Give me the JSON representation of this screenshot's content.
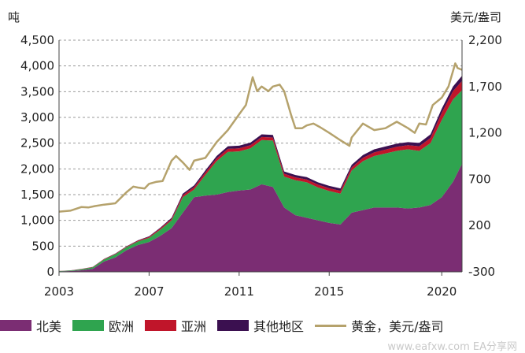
{
  "chart_data": {
    "type": "area",
    "left_axis_unit": "吨",
    "right_axis_unit": "美元/盎司",
    "left_ylim": [
      0,
      4500
    ],
    "left_ticks": [
      "0",
      "500",
      "1,000",
      "1,500",
      "2,000",
      "2,500",
      "3,000",
      "3,500",
      "4,000",
      "4,500"
    ],
    "right_ylim": [
      -300,
      2200
    ],
    "right_ticks": [
      "-300",
      "200",
      "700",
      "1,200",
      "1,700",
      "2,200"
    ],
    "x_range": [
      2003,
      2020.9
    ],
    "x_ticks": [
      "2003",
      "2007",
      "2011",
      "2015",
      "2020"
    ],
    "stack_order": [
      "北美",
      "欧洲",
      "亚洲",
      "其他地区"
    ],
    "x": [
      2003,
      2003.5,
      2004,
      2004.5,
      2005,
      2005.5,
      2006,
      2006.5,
      2007,
      2007.5,
      2008,
      2008.5,
      2009,
      2009.5,
      2010,
      2010.5,
      2011,
      2011.5,
      2012,
      2012.5,
      2013,
      2013.5,
      2014,
      2014.5,
      2015,
      2015.5,
      2016,
      2016.5,
      2017,
      2017.5,
      2018,
      2018.5,
      2019,
      2019.5,
      2020,
      2020.5,
      2020.9
    ],
    "series": [
      {
        "name": "北美",
        "color": "#7b2d73",
        "values": [
          10,
          15,
          30,
          60,
          200,
          280,
          420,
          520,
          580,
          700,
          850,
          1150,
          1450,
          1480,
          1500,
          1550,
          1580,
          1600,
          1700,
          1650,
          1250,
          1100,
          1050,
          1000,
          950,
          920,
          1150,
          1200,
          1250,
          1250,
          1250,
          1230,
          1250,
          1300,
          1450,
          1750,
          2100
        ]
      },
      {
        "name": "欧洲",
        "color": "#2fa44f",
        "values": [
          5,
          10,
          20,
          30,
          40,
          60,
          60,
          70,
          80,
          120,
          150,
          300,
          150,
          400,
          650,
          780,
          760,
          800,
          860,
          900,
          600,
          680,
          690,
          640,
          620,
          600,
          820,
          950,
          1000,
          1050,
          1100,
          1150,
          1100,
          1200,
          1500,
          1600,
          1430
        ]
      },
      {
        "name": "亚洲",
        "color": "#c0152a",
        "values": [
          2,
          2,
          5,
          5,
          8,
          10,
          12,
          15,
          20,
          25,
          30,
          40,
          45,
          50,
          55,
          60,
          60,
          60,
          60,
          60,
          55,
          55,
          55,
          55,
          55,
          55,
          60,
          65,
          70,
          75,
          80,
          80,
          90,
          100,
          140,
          160,
          180
        ]
      },
      {
        "name": "其他地区",
        "color": "#3b1050",
        "values": [
          1,
          1,
          2,
          3,
          4,
          5,
          6,
          8,
          10,
          15,
          20,
          30,
          35,
          40,
          45,
          50,
          50,
          50,
          50,
          50,
          45,
          45,
          45,
          45,
          45,
          45,
          50,
          55,
          60,
          60,
          60,
          60,
          65,
          70,
          80,
          90,
          100
        ]
      }
    ],
    "line_series": {
      "name": "黄金，美元/盎司",
      "color": "#b5a26c",
      "axis": "right",
      "x": [
        2003,
        2003.5,
        2004,
        2004.3,
        2004.6,
        2005,
        2005.5,
        2006,
        2006.3,
        2006.5,
        2006.8,
        2007,
        2007.3,
        2007.6,
        2008,
        2008.2,
        2008.5,
        2008.8,
        2009,
        2009.5,
        2010,
        2010.5,
        2011,
        2011.3,
        2011.6,
        2011.8,
        2012,
        2012.3,
        2012.5,
        2012.8,
        2013,
        2013.3,
        2013.5,
        2013.8,
        2014,
        2014.3,
        2014.6,
        2015,
        2015.5,
        2015.9,
        2016,
        2016.5,
        2017,
        2017.5,
        2018,
        2018.5,
        2018.8,
        2019,
        2019.3,
        2019.6,
        2020,
        2020.3,
        2020.6,
        2020.7,
        2020.9
      ],
      "values": [
        350,
        360,
        400,
        395,
        410,
        425,
        440,
        560,
        620,
        610,
        600,
        650,
        670,
        680,
        900,
        950,
        880,
        800,
        900,
        930,
        1100,
        1230,
        1400,
        1500,
        1800,
        1650,
        1700,
        1650,
        1700,
        1720,
        1650,
        1400,
        1250,
        1250,
        1280,
        1300,
        1260,
        1200,
        1120,
        1060,
        1150,
        1300,
        1230,
        1250,
        1320,
        1250,
        1200,
        1300,
        1290,
        1500,
        1580,
        1700,
        1950,
        1900,
        1880
      ]
    }
  },
  "legend": [
    {
      "label": "北美",
      "color": "#7b2d73",
      "kind": "box"
    },
    {
      "label": "欧洲",
      "color": "#2fa44f",
      "kind": "box"
    },
    {
      "label": "亚洲",
      "color": "#c0152a",
      "kind": "box"
    },
    {
      "label": "其他地区",
      "color": "#3b1050",
      "kind": "box"
    },
    {
      "label": "黄金，美元/盎司",
      "color": "#b5a26c",
      "kind": "line"
    }
  ],
  "watermark": "www.eafxw.com  EA分享网"
}
